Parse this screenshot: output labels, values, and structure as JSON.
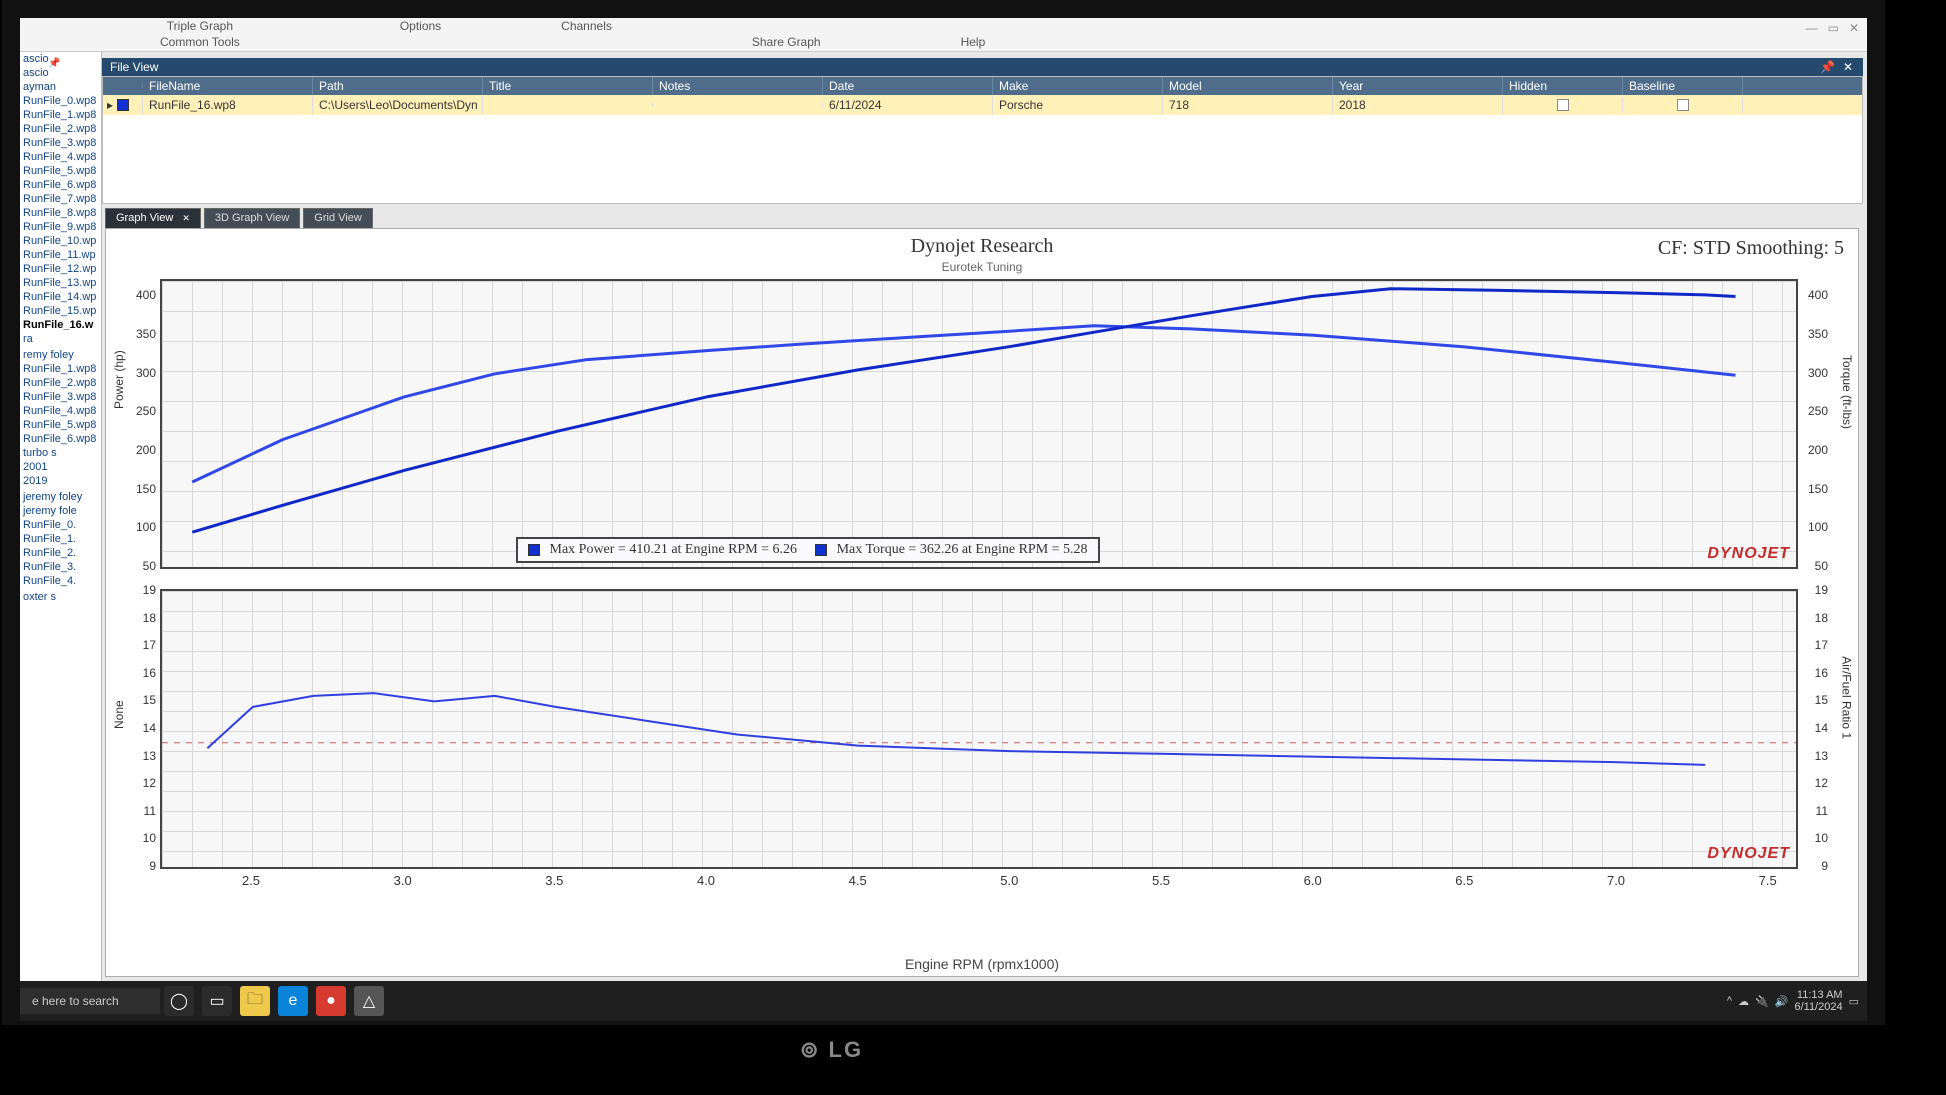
{
  "menubar": {
    "items_row1": [
      "Triple Graph",
      "Options",
      "Channels"
    ],
    "items_row2": [
      "Common Tools",
      "",
      "Share Graph",
      "Help"
    ]
  },
  "file_view": {
    "label": "File View",
    "pin": "📌",
    "close": "✕"
  },
  "file_grid": {
    "columns": [
      "FileName",
      "Path",
      "Title",
      "Notes",
      "Date",
      "Make",
      "Model",
      "Year",
      "Hidden",
      "Baseline"
    ],
    "row": {
      "file": "RunFile_16.wp8",
      "path": "C:\\Users\\Leo\\Documents\\Dyn",
      "title": "",
      "notes": "",
      "date": "6/11/2024",
      "make": "Porsche",
      "model": "718",
      "year": "2018"
    }
  },
  "left_tree": [
    "ascio",
    "ascio",
    "ayman",
    "RunFile_0.wp8",
    "RunFile_1.wp8",
    "RunFile_2.wp8",
    "RunFile_3.wp8",
    "RunFile_4.wp8",
    "RunFile_5.wp8",
    "RunFile_6.wp8",
    "RunFile_7.wp8",
    "RunFile_8.wp8",
    "RunFile_9.wp8",
    "RunFile_10.wp",
    "RunFile_11.wp",
    "RunFile_12.wp",
    "RunFile_13.wp",
    "RunFile_14.wp",
    "RunFile_15.wp",
    "RunFile_16.w",
    "ra",
    "",
    "remy foley",
    "RunFile_1.wp8",
    "RunFile_2.wp8",
    "RunFile_3.wp8",
    "RunFile_4.wp8",
    "RunFile_5.wp8",
    "RunFile_6.wp8",
    "turbo s",
    "2001",
    "2019",
    "",
    "jeremy foley",
    "  jeremy fole",
    "  RunFile_0.",
    "  RunFile_1.",
    "  RunFile_2.",
    "  RunFile_3.",
    "  RunFile_4.",
    "",
    "oxter s"
  ],
  "left_tree_bold_index": 19,
  "view_tabs": {
    "tabs": [
      "Graph View",
      "3D Graph View",
      "Grid View"
    ],
    "active_index": 0
  },
  "chart": {
    "title": "Dynojet Research",
    "subtitle": "Eurotek Tuning",
    "top_right": "CF: STD Smoothing: 5",
    "watermark": "DYNOJET",
    "x_axis_label": "Engine RPM (rpmx1000)",
    "top_plot": {
      "y_left_label": "Power (hp)",
      "y_right_label": "Torque (ft-lbs)",
      "y_left_ticks": [
        50,
        100,
        150,
        200,
        250,
        300,
        350,
        400
      ],
      "y_right_ticks": [
        50,
        100,
        150,
        200,
        250,
        300,
        350,
        400
      ],
      "y_min": 50,
      "y_max": 420,
      "power_color": "#1028c8",
      "torque_color": "#3048e8",
      "line_width": 3,
      "legend": {
        "power": "Max Power = 410.21 at Engine RPM = 6.26",
        "torque": "Max Torque = 362.26 at Engine RPM = 5.28"
      },
      "power_series": [
        [
          2.3,
          95
        ],
        [
          2.6,
          130
        ],
        [
          3.0,
          175
        ],
        [
          3.5,
          225
        ],
        [
          4.0,
          270
        ],
        [
          4.5,
          305
        ],
        [
          5.0,
          335
        ],
        [
          5.3,
          355
        ],
        [
          5.6,
          375
        ],
        [
          6.0,
          400
        ],
        [
          6.26,
          410
        ],
        [
          6.6,
          408
        ],
        [
          7.0,
          405
        ],
        [
          7.3,
          402
        ],
        [
          7.4,
          400
        ]
      ],
      "torque_series": [
        [
          2.3,
          160
        ],
        [
          2.6,
          215
        ],
        [
          3.0,
          270
        ],
        [
          3.3,
          300
        ],
        [
          3.6,
          318
        ],
        [
          4.0,
          330
        ],
        [
          4.3,
          338
        ],
        [
          4.7,
          348
        ],
        [
          5.0,
          355
        ],
        [
          5.28,
          362
        ],
        [
          5.6,
          358
        ],
        [
          6.0,
          350
        ],
        [
          6.5,
          335
        ],
        [
          7.0,
          315
        ],
        [
          7.4,
          298
        ]
      ]
    },
    "bottom_plot": {
      "y_left_label": "None",
      "y_right_label": "Air/Fuel Ratio 1",
      "y_ticks": [
        9,
        10,
        11,
        12,
        13,
        14,
        15,
        16,
        17,
        18,
        19
      ],
      "y_min": 9,
      "y_max": 19,
      "line_color": "#3040e0",
      "line_width": 2,
      "afr_series": [
        [
          2.35,
          13.3
        ],
        [
          2.5,
          14.8
        ],
        [
          2.7,
          15.2
        ],
        [
          2.9,
          15.3
        ],
        [
          3.1,
          15.0
        ],
        [
          3.3,
          15.2
        ],
        [
          3.5,
          14.8
        ],
        [
          3.8,
          14.3
        ],
        [
          4.1,
          13.8
        ],
        [
          4.5,
          13.4
        ],
        [
          5.0,
          13.2
        ],
        [
          5.5,
          13.1
        ],
        [
          6.0,
          13.0
        ],
        [
          6.5,
          12.9
        ],
        [
          7.0,
          12.8
        ],
        [
          7.3,
          12.7
        ]
      ]
    },
    "x_ticks": [
      2.5,
      3.0,
      3.5,
      4.0,
      4.5,
      5.0,
      5.5,
      6.0,
      6.5,
      7.0,
      7.5
    ],
    "x_min": 2.2,
    "x_max": 7.6
  },
  "taskbar": {
    "search_placeholder": "e here to search",
    "time": "11:13 AM",
    "date": "6/11/2024",
    "tray_icons": [
      "^",
      "☁",
      "🔌",
      "🔊"
    ]
  }
}
